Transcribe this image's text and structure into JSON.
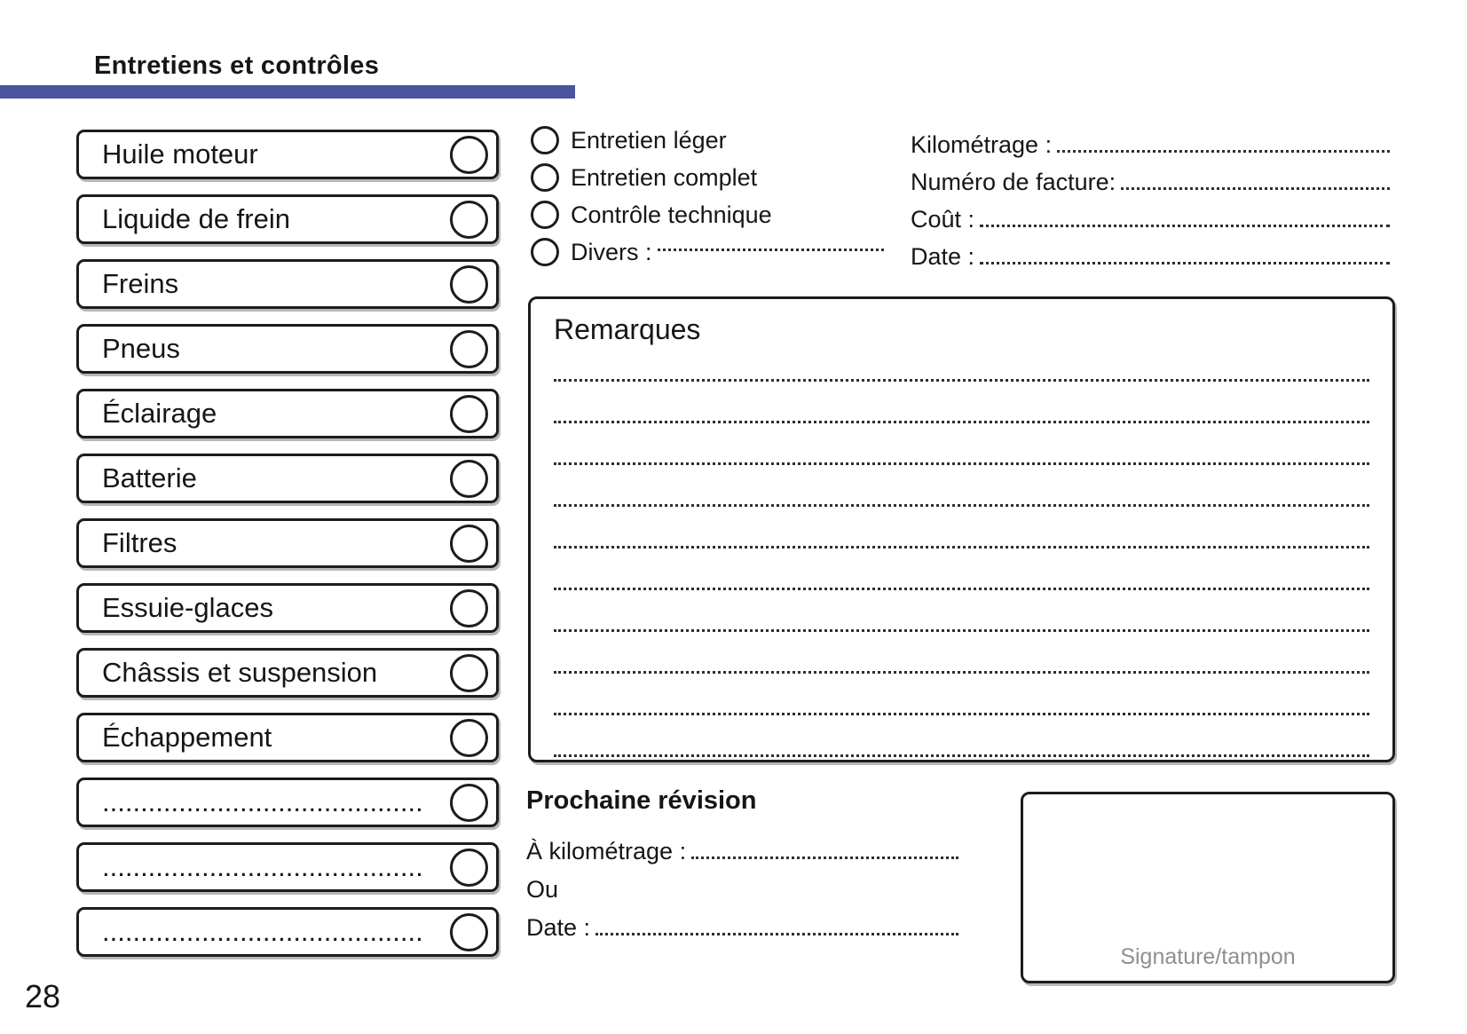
{
  "title": "Entretiens et contrôles",
  "colors": {
    "accent": "#4a549e",
    "ink": "#1c1c1c",
    "muted_text": "#8f8f8f"
  },
  "checklist": {
    "items": [
      {
        "label": "Huile moteur",
        "dotted": false
      },
      {
        "label": "Liquide de frein",
        "dotted": false
      },
      {
        "label": "Freins",
        "dotted": false
      },
      {
        "label": "Pneus",
        "dotted": false
      },
      {
        "label": "Éclairage",
        "dotted": false
      },
      {
        "label": "Batterie",
        "dotted": false
      },
      {
        "label": "Filtres",
        "dotted": false
      },
      {
        "label": "Essuie-glaces",
        "dotted": false
      },
      {
        "label": "Châssis et suspension",
        "dotted": false
      },
      {
        "label": "Échappement",
        "dotted": false
      },
      {
        "label": "..........................................",
        "dotted": true
      },
      {
        "label": "..........................................",
        "dotted": true
      },
      {
        "label": "..........................................",
        "dotted": true
      }
    ]
  },
  "service_types": {
    "options": [
      {
        "label": "Entretien léger",
        "has_dots": false
      },
      {
        "label": "Entretien complet",
        "has_dots": false
      },
      {
        "label": "Contrôle technique",
        "has_dots": false
      },
      {
        "label": "Divers :",
        "has_dots": true
      }
    ]
  },
  "invoice_fields": {
    "rows": [
      {
        "label": "Kilométrage :"
      },
      {
        "label": "Numéro de facture:"
      },
      {
        "label": "Coût :"
      },
      {
        "label": "Date :"
      }
    ]
  },
  "remarks": {
    "title": "Remarques",
    "line_count": 10
  },
  "next_service": {
    "title": "Prochaine révision",
    "km_label": "À kilométrage :",
    "or_label": "Ou",
    "date_label": "Date :"
  },
  "signature": {
    "label": "Signature/tampon"
  },
  "page_number": "28"
}
